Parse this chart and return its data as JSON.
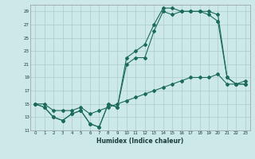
{
  "xlabel": "Humidex (Indice chaleur)",
  "bg_color": "#cce8e8",
  "grid_color": "#aacccc",
  "line_color": "#1a6b5a",
  "xlim": [
    -0.5,
    23.5
  ],
  "ylim": [
    11,
    30
  ],
  "xticks": [
    0,
    1,
    2,
    3,
    4,
    5,
    6,
    7,
    8,
    9,
    10,
    11,
    12,
    13,
    14,
    15,
    16,
    17,
    18,
    19,
    20,
    21,
    22,
    23
  ],
  "yticks": [
    11,
    13,
    15,
    17,
    19,
    21,
    23,
    25,
    27,
    29
  ],
  "line1_x": [
    0,
    1,
    2,
    3,
    4,
    5,
    6,
    7,
    8,
    9,
    10,
    11,
    12,
    13,
    14,
    15,
    16,
    17,
    18,
    19,
    20,
    21,
    22,
    23
  ],
  "line1_y": [
    15,
    14.5,
    13,
    12.5,
    13.5,
    14,
    12,
    11.5,
    15,
    14.5,
    22,
    23,
    24,
    27,
    29.5,
    29.5,
    29,
    29,
    29,
    29,
    28.5,
    19,
    18,
    18
  ],
  "line2_x": [
    0,
    1,
    2,
    3,
    4,
    5,
    6,
    7,
    8,
    9,
    10,
    11,
    12,
    13,
    14,
    15,
    16,
    17,
    18,
    19,
    20,
    21,
    22,
    23
  ],
  "line2_y": [
    15,
    14.5,
    13,
    12.5,
    13.5,
    14,
    12,
    11.5,
    15,
    14.5,
    21,
    22,
    22,
    26,
    29,
    28.5,
    29,
    29,
    29,
    28.5,
    27.5,
    19,
    18,
    18
  ],
  "line3_x": [
    0,
    1,
    2,
    3,
    4,
    5,
    6,
    7,
    8,
    9,
    10,
    11,
    12,
    13,
    14,
    15,
    16,
    17,
    18,
    19,
    20,
    21,
    22,
    23
  ],
  "line3_y": [
    15,
    15,
    14,
    14,
    14,
    14.5,
    13.5,
    14,
    14.5,
    15,
    15.5,
    16,
    16.5,
    17,
    17.5,
    18,
    18.5,
    19,
    19,
    19,
    19.5,
    18,
    18,
    18.5
  ]
}
